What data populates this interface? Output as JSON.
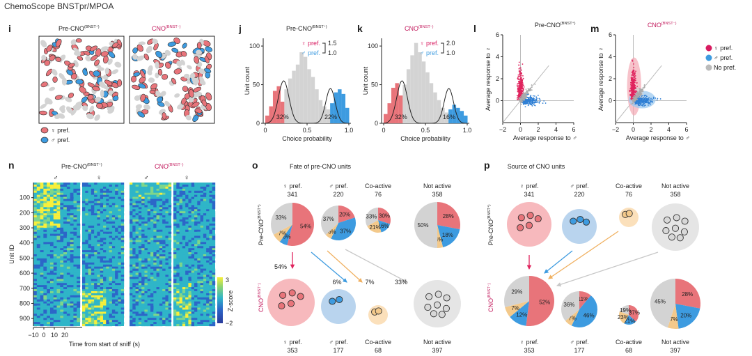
{
  "header": "ChemoScope BNSTpr/MPOA",
  "colors": {
    "female": "#e8747a",
    "female_dark": "#d81b60",
    "male": "#3d9be0",
    "grey": "#d3d3d3",
    "coactive": "#f3c98b",
    "magenta": "#c2185b",
    "heat_low": "#2c66c8",
    "heat_mid": "#2fb5c8",
    "heat_high": "#f8ef3b"
  },
  "panel_letters": {
    "i": "i",
    "j": "j",
    "k": "k",
    "l": "l",
    "m": "m",
    "n": "n",
    "o": "o",
    "p": "p"
  },
  "labels": {
    "pre": "Pre-CNO",
    "cno": "CNO",
    "bnst_plus": "(BNST⁺)",
    "bnst_minus": "(BNST⁻)",
    "fpref": "♀ pref.",
    "mpref": "♂ pref.",
    "nopref": "No pref.",
    "coactive": "Co-active",
    "notactive": "Not active",
    "fsym": "♀",
    "msym": "♂"
  },
  "panel_i": {
    "legend": [
      "♀ pref.",
      "♂ pref."
    ]
  },
  "panel_j": {
    "ratio": [
      {
        "label": "♀ pref.",
        "value": "1.5"
      },
      {
        "label": "♂ pref.",
        "value": "1.0"
      }
    ],
    "pct_left": "32%",
    "pct_right": "22%",
    "xlabel": "Choice probability",
    "ylabel": "Unit count",
    "xticks": [
      "0",
      "0.5",
      "1.0"
    ],
    "yticks": [
      "0",
      "50",
      "100"
    ],
    "hist": [
      10,
      22,
      42,
      48,
      28,
      44,
      58,
      68,
      76,
      92,
      86,
      70,
      60,
      44,
      30,
      22,
      18,
      26,
      40,
      44,
      38,
      20
    ]
  },
  "panel_k": {
    "ratio": [
      {
        "label": "♀ pref.",
        "value": "2.0"
      },
      {
        "label": "♂ pref.",
        "value": "1.0"
      }
    ],
    "pct_left": "32%",
    "pct_right": "16%",
    "xlabel": "Choice probability",
    "ylabel": "Unit count",
    "xticks": [
      "0",
      "0.5",
      "1.0"
    ],
    "yticks": [
      "0",
      "50",
      "100"
    ],
    "hist": [
      12,
      26,
      46,
      52,
      36,
      50,
      70,
      88,
      104,
      92,
      80,
      66,
      52,
      40,
      30,
      20,
      14,
      18,
      24,
      20,
      16,
      10
    ]
  },
  "panel_l": {
    "xlabel": "Average response to ♂",
    "ylabel": "Average response to ♀",
    "xticks": [
      "−2",
      "0",
      "2",
      "4",
      "6"
    ],
    "yticks": [
      "0",
      "2",
      "4",
      "6"
    ]
  },
  "panel_m": {
    "xlabel": "Average response to ♂",
    "ylabel": "Average response to ♀",
    "xticks": [
      "−2",
      "0",
      "2",
      "4",
      "6"
    ],
    "yticks": [
      "0",
      "2",
      "4",
      "6"
    ],
    "legend": [
      "♀ pref.",
      "♂ pref.",
      "No pref."
    ]
  },
  "panel_n": {
    "ylabel": "Unit ID",
    "xlabel": "Time from start of sniff (s)",
    "yticks": [
      "100",
      "200",
      "300",
      "400",
      "500",
      "600",
      "700",
      "800",
      "900"
    ],
    "xticks": [
      "−10",
      "0",
      "10",
      "20"
    ],
    "colorbar_label": "Z-score",
    "colorbar_ticks": [
      "3",
      "−2"
    ],
    "cols": [
      "♂",
      "♀",
      "♂",
      "♀"
    ]
  },
  "panel_o": {
    "title": "Fate of pre-CNO units",
    "top": [
      {
        "label": "♀ pref.",
        "n": "341"
      },
      {
        "label": "♂ pref.",
        "n": "220"
      },
      {
        "label": "Co-active",
        "n": "76"
      },
      {
        "label": "Not active",
        "n": "358"
      }
    ],
    "bottom": [
      {
        "label": "♀ pref.",
        "n": "353"
      },
      {
        "label": "♂ pref.",
        "n": "177"
      },
      {
        "label": "Co-active",
        "n": "68"
      },
      {
        "label": "Not active",
        "n": "397"
      }
    ],
    "pies": [
      [
        {
          "c": "female",
          "v": 54,
          "t": "54%"
        },
        {
          "c": "male",
          "v": 6,
          "t": "6%"
        },
        {
          "c": "coactive",
          "v": 7,
          "t": "7%"
        },
        {
          "c": "grey",
          "v": 33,
          "t": "33%"
        }
      ],
      [
        {
          "c": "female",
          "v": 20,
          "t": "20%"
        },
        {
          "c": "male",
          "v": 37,
          "t": "37%"
        },
        {
          "c": "coactive",
          "v": 6,
          "t": "6%"
        },
        {
          "c": "grey",
          "v": 37,
          "t": "37%"
        }
      ],
      [
        {
          "c": "female",
          "v": 30,
          "t": "30%"
        },
        {
          "c": "male",
          "v": 16,
          "t": "16%"
        },
        {
          "c": "coactive",
          "v": 21,
          "t": "21%"
        },
        {
          "c": "grey",
          "v": 33,
          "t": "33%"
        }
      ],
      [
        {
          "c": "female",
          "v": 28,
          "t": "28%"
        },
        {
          "c": "male",
          "v": 18,
          "t": "18%"
        },
        {
          "c": "coactive",
          "v": 4,
          "t": "4%"
        },
        {
          "c": "grey",
          "v": 50,
          "t": "50%"
        }
      ]
    ],
    "arrows": [
      "54%",
      "6%",
      "7%",
      "33%"
    ]
  },
  "panel_p": {
    "title": "Source of CNO units",
    "top": [
      {
        "label": "♀ pref.",
        "n": "341"
      },
      {
        "label": "♂ pref.",
        "n": "220"
      },
      {
        "label": "Co-active",
        "n": "76"
      },
      {
        "label": "Not active",
        "n": "358"
      }
    ],
    "bottom": [
      {
        "label": "♀ pref.",
        "n": "353"
      },
      {
        "label": "♂ pref.",
        "n": "177"
      },
      {
        "label": "Co-active",
        "n": "68"
      },
      {
        "label": "Not active",
        "n": "397"
      }
    ],
    "pies": [
      [
        {
          "c": "female",
          "v": 52,
          "t": "52%"
        },
        {
          "c": "male",
          "v": 12,
          "t": "12%"
        },
        {
          "c": "coactive",
          "v": 7,
          "t": "7%"
        },
        {
          "c": "grey",
          "v": 29,
          "t": "29%"
        }
      ],
      [
        {
          "c": "female",
          "v": 11,
          "t": "11%"
        },
        {
          "c": "male",
          "v": 46,
          "t": "46%"
        },
        {
          "c": "coactive",
          "v": 7,
          "t": "7%"
        },
        {
          "c": "grey",
          "v": 36,
          "t": "36%"
        }
      ],
      [
        {
          "c": "female",
          "v": 37,
          "t": "37%"
        },
        {
          "c": "male",
          "v": 21,
          "t": "21%"
        },
        {
          "c": "coactive",
          "v": 23,
          "t": "23%"
        },
        {
          "c": "grey",
          "v": 19,
          "t": "19%"
        }
      ],
      [
        {
          "c": "female",
          "v": 28,
          "t": "28%"
        },
        {
          "c": "male",
          "v": 20,
          "t": "20%"
        },
        {
          "c": "coactive",
          "v": 7,
          "t": "7%"
        },
        {
          "c": "grey",
          "v": 45,
          "t": "45%"
        }
      ]
    ]
  },
  "chart_data": [
    {
      "type": "bar",
      "panel": "j",
      "xlabel": "Choice probability",
      "ylabel": "Unit count",
      "xlim": [
        0,
        1
      ],
      "ylim": [
        0,
        100
      ],
      "series": [
        {
          "name": "♀ pref.",
          "values": [
            10,
            22,
            42,
            48,
            28
          ]
        },
        {
          "name": "No pref.",
          "values": [
            44,
            58,
            68,
            76,
            92,
            86,
            70,
            60,
            44,
            30,
            22,
            18
          ]
        },
        {
          "name": "♂ pref.",
          "values": [
            26,
            40,
            44,
            38,
            20
          ]
        }
      ],
      "annotations": [
        "32%",
        "22%"
      ]
    },
    {
      "type": "bar",
      "panel": "k",
      "xlabel": "Choice probability",
      "ylabel": "Unit count",
      "xlim": [
        0,
        1
      ],
      "ylim": [
        0,
        100
      ],
      "series": [
        {
          "name": "♀ pref.",
          "values": [
            12,
            26,
            46,
            52,
            36
          ]
        },
        {
          "name": "No pref.",
          "values": [
            50,
            70,
            88,
            104,
            92,
            80,
            66,
            52,
            40,
            30,
            20,
            14
          ]
        },
        {
          "name": "♂ pref.",
          "values": [
            18,
            24,
            20,
            16,
            10
          ]
        }
      ],
      "annotations": [
        "32%",
        "16%"
      ]
    },
    {
      "type": "scatter",
      "panel": "l",
      "xlabel": "Average response to ♂",
      "ylabel": "Average response to ♀",
      "xlim": [
        -2,
        6
      ],
      "ylim": [
        -2,
        6
      ]
    },
    {
      "type": "scatter",
      "panel": "m",
      "xlabel": "Average response to ♂",
      "ylabel": "Average response to ♀",
      "xlim": [
        -2,
        6
      ],
      "ylim": [
        -2,
        6
      ]
    },
    {
      "type": "heatmap",
      "panel": "n",
      "xlabel": "Time from start of sniff (s)",
      "ylabel": "Unit ID",
      "ylim": [
        1,
        950
      ],
      "colorbar": [
        -2,
        3
      ]
    },
    {
      "type": "pie",
      "panel": "o",
      "slices": [
        [
          54,
          6,
          7,
          33
        ],
        [
          20,
          37,
          6,
          37
        ],
        [
          30,
          16,
          21,
          33
        ],
        [
          28,
          18,
          4,
          50
        ]
      ]
    },
    {
      "type": "pie",
      "panel": "p",
      "slices": [
        [
          52,
          12,
          7,
          29
        ],
        [
          11,
          46,
          7,
          36
        ],
        [
          37,
          21,
          23,
          19
        ],
        [
          28,
          20,
          7,
          45
        ]
      ]
    }
  ]
}
